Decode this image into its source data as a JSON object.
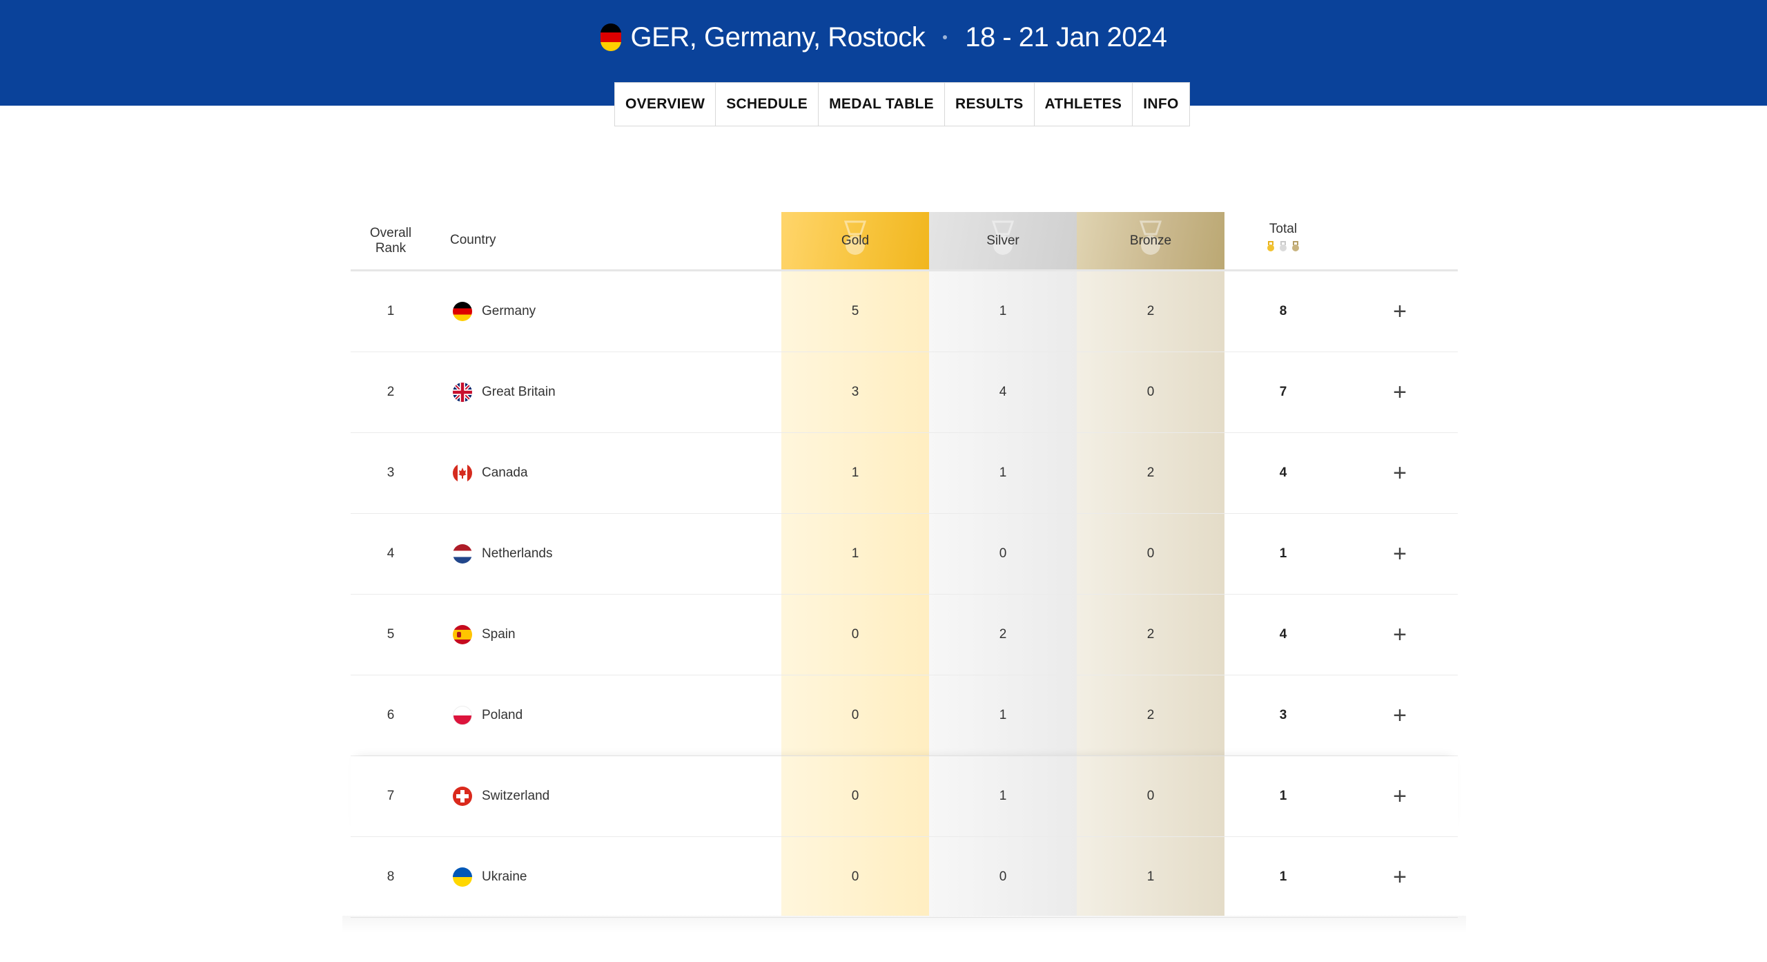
{
  "event": {
    "code_location": "GER, Germany, Rostock",
    "dates": "18 - 21 Jan 2024",
    "flag_colors": [
      "#000000",
      "#dd0000",
      "#ffce00"
    ]
  },
  "nav": [
    {
      "label": "OVERVIEW",
      "name": "tab-overview"
    },
    {
      "label": "SCHEDULE",
      "name": "tab-schedule"
    },
    {
      "label": "MEDAL TABLE",
      "name": "tab-medal-table"
    },
    {
      "label": "RESULTS",
      "name": "tab-results"
    },
    {
      "label": "ATHLETES",
      "name": "tab-athletes"
    },
    {
      "label": "INFO",
      "name": "tab-info"
    }
  ],
  "table": {
    "headers": {
      "rank_line1": "Overall",
      "rank_line2": "Rank",
      "country": "Country",
      "gold": "Gold",
      "silver": "Silver",
      "bronze": "Bronze",
      "total": "Total"
    },
    "expand_symbol": "+",
    "rows": [
      {
        "rank": "1",
        "country": "Germany",
        "flag": "germany",
        "gold": "5",
        "silver": "1",
        "bronze": "2",
        "total": "8"
      },
      {
        "rank": "2",
        "country": "Great Britain",
        "flag": "great-britain",
        "gold": "3",
        "silver": "4",
        "bronze": "0",
        "total": "7"
      },
      {
        "rank": "3",
        "country": "Canada",
        "flag": "canada",
        "gold": "1",
        "silver": "1",
        "bronze": "2",
        "total": "4"
      },
      {
        "rank": "4",
        "country": "Netherlands",
        "flag": "netherlands",
        "gold": "1",
        "silver": "0",
        "bronze": "0",
        "total": "1"
      },
      {
        "rank": "5",
        "country": "Spain",
        "flag": "spain",
        "gold": "0",
        "silver": "2",
        "bronze": "2",
        "total": "4"
      },
      {
        "rank": "6",
        "country": "Poland",
        "flag": "poland",
        "gold": "0",
        "silver": "1",
        "bronze": "2",
        "total": "3"
      },
      {
        "rank": "7",
        "country": "Switzerland",
        "flag": "switzerland",
        "gold": "0",
        "silver": "1",
        "bronze": "0",
        "total": "1"
      },
      {
        "rank": "8",
        "country": "Ukraine",
        "flag": "ukraine",
        "gold": "0",
        "silver": "0",
        "bronze": "1",
        "total": "1"
      }
    ]
  },
  "colors": {
    "header_blue": "#0a429a",
    "gold": "#f7c33a",
    "silver": "#d0d0d0",
    "bronze": "#c9b78c"
  }
}
